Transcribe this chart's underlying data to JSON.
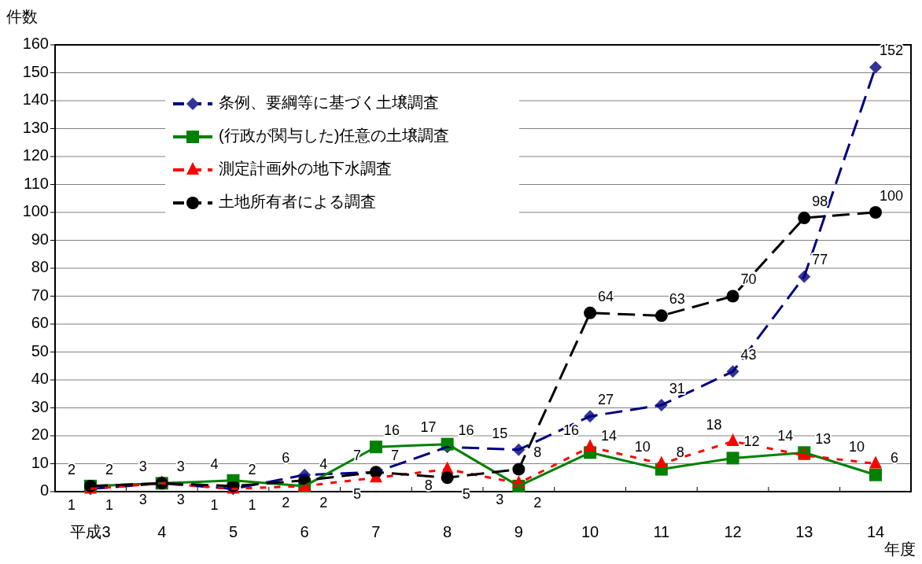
{
  "chart_data": {
    "type": "line",
    "ylabel": "件数",
    "xlabel": "年度",
    "categories": [
      "平成3",
      "4",
      "5",
      "6",
      "7",
      "8",
      "9",
      "10",
      "11",
      "12",
      "13",
      "14"
    ],
    "series": [
      {
        "name": "条例、要綱等に基づく土壌調査",
        "color": "#000080",
        "marker": "diamond",
        "line_style": "dashed",
        "values": [
          1,
          3,
          1,
          6,
          7,
          16,
          15,
          27,
          31,
          43,
          77,
          152
        ]
      },
      {
        "name": "(行政が関与した)任意の土壌調査",
        "color": "#008000",
        "marker": "square",
        "line_style": "solid",
        "values": [
          2,
          3,
          4,
          2,
          16,
          17,
          2,
          14,
          8,
          12,
          14,
          6
        ]
      },
      {
        "name": "測定計画外の地下水調査",
        "color": "#ff0000",
        "marker": "triangle",
        "line_style": "dotted",
        "values": [
          1,
          3,
          1,
          2,
          5,
          8,
          3,
          16,
          10,
          18,
          13,
          10
        ]
      },
      {
        "name": "土地所有者による調査",
        "color": "#000000",
        "marker": "circle",
        "line_style": "dashed",
        "values": [
          2,
          3,
          2,
          4,
          7,
          5,
          8,
          64,
          63,
          70,
          98,
          100
        ]
      }
    ],
    "ylim": [
      0,
      160
    ],
    "yticks": [
      0,
      10,
      20,
      30,
      40,
      50,
      60,
      70,
      80,
      90,
      100,
      110,
      120,
      130,
      140,
      150,
      160
    ],
    "grid": "y",
    "legend": "top left",
    "data_labels": true
  }
}
